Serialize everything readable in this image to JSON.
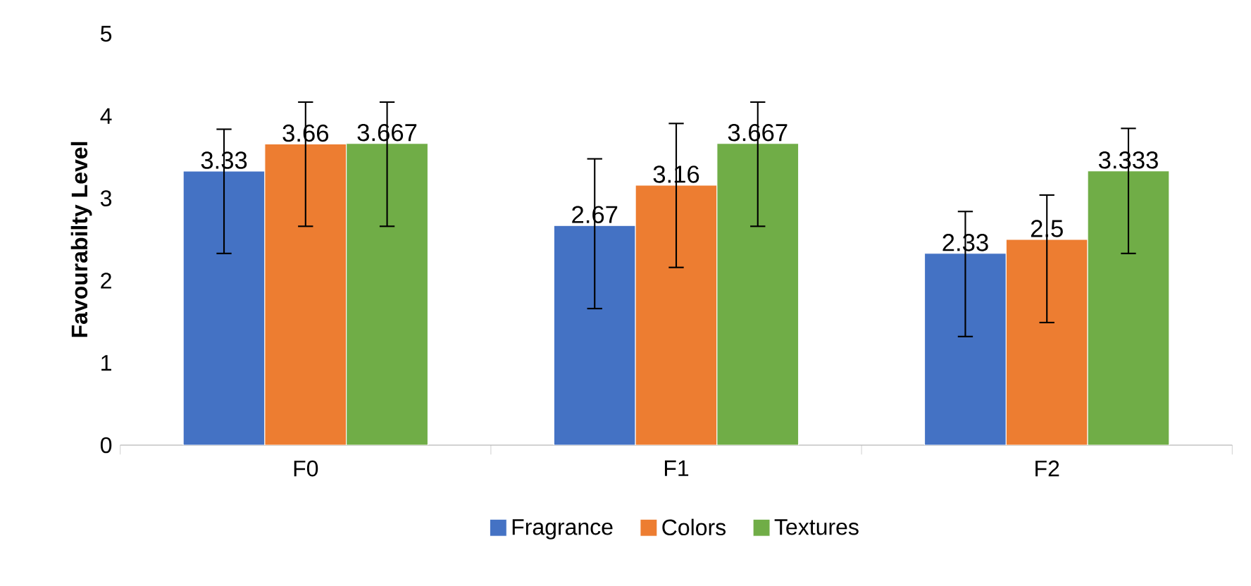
{
  "chart_data": {
    "type": "bar",
    "ylabel": "Favourabilty Level",
    "categories": [
      "F0",
      "F1",
      "F2"
    ],
    "series": [
      {
        "name": "Fragrance",
        "color": "#4472c4",
        "values": [
          3.33,
          2.67,
          2.33
        ],
        "value_labels": [
          "3.33",
          "2.67",
          "2.33"
        ],
        "errors": [
          [
            2.33,
            3.84
          ],
          [
            1.66,
            3.48
          ],
          [
            1.32,
            2.84
          ]
        ]
      },
      {
        "name": "Colors",
        "color": "#ed7d31",
        "values": [
          3.66,
          3.16,
          2.5
        ],
        "value_labels": [
          "3.66",
          "3.16",
          "2.5"
        ],
        "errors": [
          [
            2.66,
            4.17
          ],
          [
            2.16,
            3.91
          ],
          [
            1.49,
            3.04
          ]
        ]
      },
      {
        "name": "Textures",
        "color": "#70ad47",
        "values": [
          3.667,
          3.667,
          3.333
        ],
        "value_labels": [
          "3.667",
          "3.667",
          "3.333"
        ],
        "errors": [
          [
            2.66,
            4.17
          ],
          [
            2.66,
            4.17
          ],
          [
            2.33,
            3.85
          ]
        ]
      }
    ],
    "ylim": [
      0,
      5
    ],
    "yticks": [
      0,
      1,
      2,
      3,
      4,
      5
    ],
    "grid": false,
    "legend": "bottom"
  }
}
